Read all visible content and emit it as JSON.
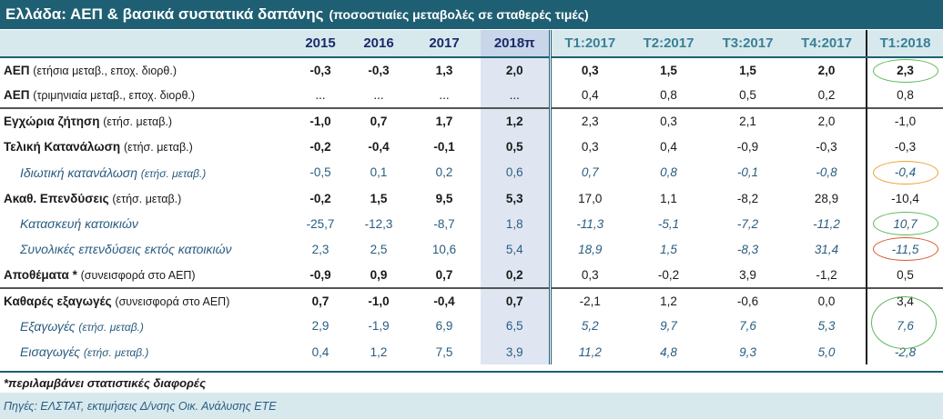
{
  "title": {
    "main": "Ελλάδα: ΑΕΠ & βασικά συστατικά δαπάνης",
    "sub": "(ποσοστιαίες μεταβολές σε σταθερές τιμές)"
  },
  "columns": {
    "years": [
      "2015",
      "2016",
      "2017",
      "2018π"
    ],
    "quarters": [
      "Τ1:2017",
      "Τ2:2017",
      "Τ3:2017",
      "Τ4:2017"
    ],
    "latest": "Τ1:2018"
  },
  "rows": [
    {
      "label": "ΑΕΠ",
      "note": "(ετήσια μεταβ., εποχ. διορθ.)",
      "years": [
        "-0,3",
        "-0,3",
        "1,3",
        "2,0"
      ],
      "quarters": [
        "0,3",
        "1,5",
        "1,5",
        "2,0"
      ],
      "latest": "2,3"
    },
    {
      "label": "ΑΕΠ",
      "note": "(τριμηνιαία μεταβ., εποχ. διορθ.)",
      "years": [
        "...",
        "...",
        "...",
        "..."
      ],
      "quarters": [
        "0,4",
        "0,8",
        "0,5",
        "0,2"
      ],
      "latest": "0,8"
    },
    {
      "label": "Εγχώρια ζήτηση",
      "note": "(ετήσ. μεταβ.)",
      "years": [
        "-1,0",
        "0,7",
        "1,7",
        "1,2"
      ],
      "quarters": [
        "2,3",
        "0,3",
        "2,1",
        "2,0"
      ],
      "latest": "-1,0"
    },
    {
      "label": "Τελική Κατανάλωση",
      "note": "(ετήσ. μεταβ.)",
      "years": [
        "-0,2",
        "-0,4",
        "-0,1",
        "0,5"
      ],
      "quarters": [
        "0,3",
        "0,4",
        "-0,9",
        "-0,3"
      ],
      "latest": "-0,3"
    },
    {
      "label": "Ιδιωτική κατανάλωση",
      "note": "(ετήσ. μεταβ.)",
      "years": [
        "-0,5",
        "0,1",
        "0,2",
        "0,6"
      ],
      "quarters": [
        "0,7",
        "0,8",
        "-0,1",
        "-0,8"
      ],
      "latest": "-0,4"
    },
    {
      "label": "Ακαθ. Επενδύσεις",
      "note": "(ετήσ. μεταβ.)",
      "years": [
        "-0,2",
        "1,5",
        "9,5",
        "5,3"
      ],
      "quarters": [
        "17,0",
        "1,1",
        "-8,2",
        "28,9"
      ],
      "latest": "-10,4"
    },
    {
      "label": "Κατασκευή κατοικιών",
      "note": "",
      "years": [
        "-25,7",
        "-12,3",
        "-8,7",
        "1,8"
      ],
      "quarters": [
        "-11,3",
        "-5,1",
        "-7,2",
        "-11,2"
      ],
      "latest": "10,7"
    },
    {
      "label": "Συνολικές επενδύσεις εκτός κατοικιών",
      "note": "",
      "years": [
        "2,3",
        "2,5",
        "10,6",
        "5,4"
      ],
      "quarters": [
        "18,9",
        "1,5",
        "-8,3",
        "31,4"
      ],
      "latest": "-11,5"
    },
    {
      "label": "Αποθέματα *",
      "note": "(συνεισφορά στο ΑΕΠ)",
      "years": [
        "-0,9",
        "0,9",
        "0,7",
        "0,2"
      ],
      "quarters": [
        "0,3",
        "-0,2",
        "3,9",
        "-1,2"
      ],
      "latest": "0,5"
    },
    {
      "label": "Καθαρές εξαγωγές",
      "note": "(συνεισφορά στο ΑΕΠ)",
      "years": [
        "0,7",
        "-1,0",
        "-0,4",
        "0,7"
      ],
      "quarters": [
        "-2,1",
        "1,2",
        "-0,6",
        "0,0"
      ],
      "latest": "3,4"
    },
    {
      "label": "Εξαγωγές",
      "note": "(ετήσ. μεταβ.)",
      "years": [
        "2,9",
        "-1,9",
        "6,9",
        "6,5"
      ],
      "quarters": [
        "5,2",
        "9,7",
        "7,6",
        "5,3"
      ],
      "latest": "7,6"
    },
    {
      "label": "Εισαγωγές",
      "note": "(ετήσ. μεταβ.)",
      "years": [
        "0,4",
        "1,2",
        "7,5",
        "3,9"
      ],
      "quarters": [
        "11,2",
        "4,8",
        "9,3",
        "5,0"
      ],
      "latest": "-2,8"
    }
  ],
  "footnote": "*περιλαμβάνει στατιστικές διαφορές",
  "sources": "Πηγές: ΕΛΣΤΑΤ, εκτιμήσεις Δ/νσης Οικ. Ανάλυσης ΕΤΕ",
  "colors": {
    "header_bar": "#1f5f73",
    "header_row": "#d8e9ee",
    "highlight_column": "#dfe6f2",
    "circle_green": "#5cb85c",
    "circle_orange": "#f0a030",
    "circle_red": "#d9552b"
  }
}
